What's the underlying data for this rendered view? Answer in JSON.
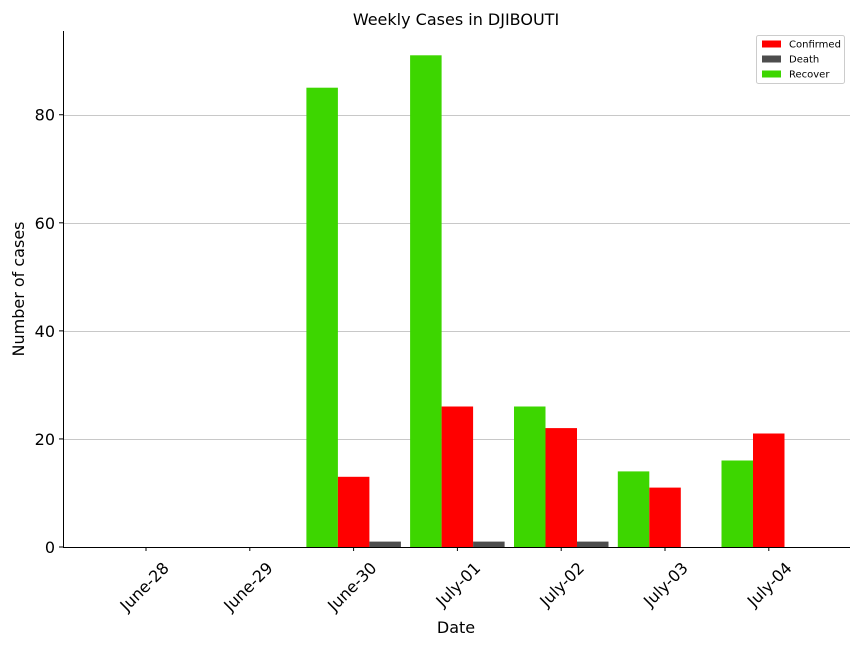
{
  "chart_data": {
    "type": "bar",
    "title": "Weekly Cases in DJIBOUTI",
    "xlabel": "Date",
    "ylabel": "Number of cases",
    "categories": [
      "June-28",
      "June-29",
      "June-30",
      "July-01",
      "July-02",
      "July-03",
      "July-04"
    ],
    "series": [
      {
        "name": "Recover",
        "color": "#3dd600",
        "values": [
          0,
          0,
          85,
          91,
          26,
          14,
          16
        ]
      },
      {
        "name": "Confirmed",
        "color": "#ff0000",
        "values": [
          0,
          0,
          13,
          26,
          22,
          11,
          21
        ]
      },
      {
        "name": "Death",
        "color": "#4d4d4d",
        "values": [
          0,
          0,
          1,
          1,
          1,
          0,
          0
        ]
      }
    ],
    "legend_order": [
      "Confirmed",
      "Death",
      "Recover"
    ],
    "yticks": [
      0,
      20,
      40,
      60,
      80
    ],
    "ylim": [
      0,
      95.5
    ],
    "grid": "horizontal",
    "legend_position": "top-right"
  }
}
